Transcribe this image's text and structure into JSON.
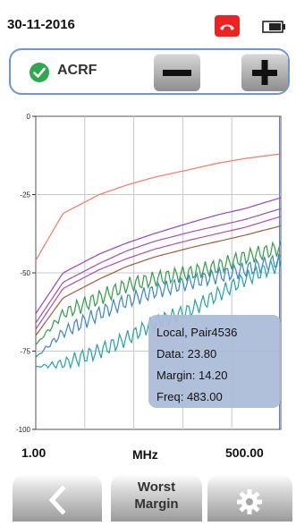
{
  "status": {
    "date": "30-11-2016",
    "phone_icon": "phone-hangup-icon",
    "battery_icon": "battery-icon"
  },
  "measurement": {
    "check_icon": "check-circle-icon",
    "label": "ACRF",
    "minus_icon": "minus-icon",
    "plus_icon": "plus-icon"
  },
  "chart_data": {
    "type": "line",
    "x_scale": "log",
    "xlim": [
      1,
      500
    ],
    "ylim": [
      -100,
      0
    ],
    "xlabel": "MHz",
    "x_tick_labels": [
      "1.00",
      "500.00"
    ],
    "y_tick_labels": [
      "0",
      "-25",
      "-50",
      "-75",
      "-100"
    ],
    "grid": true,
    "series": [
      {
        "color": "#f07a63",
        "points": [
          [
            1,
            -46
          ],
          [
            2,
            -31
          ],
          [
            5,
            -25
          ],
          [
            10,
            -22
          ],
          [
            20,
            -19.5
          ],
          [
            50,
            -17
          ],
          [
            100,
            -15
          ],
          [
            200,
            -13.5
          ],
          [
            500,
            -12
          ]
        ]
      },
      {
        "color": "#8e45c7",
        "points": [
          [
            1,
            -63
          ],
          [
            2,
            -50
          ],
          [
            5,
            -44
          ],
          [
            10,
            -40.5
          ],
          [
            20,
            -37.5
          ],
          [
            50,
            -34
          ],
          [
            100,
            -31.5
          ],
          [
            200,
            -29.5
          ],
          [
            500,
            -26
          ]
        ]
      },
      {
        "color": "#9b4fb8",
        "points": [
          [
            1,
            -66
          ],
          [
            2,
            -53
          ],
          [
            5,
            -47
          ],
          [
            10,
            -43
          ],
          [
            20,
            -40
          ],
          [
            50,
            -37
          ],
          [
            100,
            -35
          ],
          [
            200,
            -33
          ],
          [
            500,
            -29.5
          ]
        ]
      },
      {
        "color": "#b050a0",
        "points": [
          [
            1,
            -68
          ],
          [
            2,
            -55
          ],
          [
            5,
            -49
          ],
          [
            10,
            -45.5
          ],
          [
            20,
            -42.5
          ],
          [
            50,
            -39.5
          ],
          [
            100,
            -37.5
          ],
          [
            200,
            -35.5
          ],
          [
            500,
            -32
          ]
        ]
      },
      {
        "color": "#a05a3a",
        "points": [
          [
            1,
            -70
          ],
          [
            2,
            -58
          ],
          [
            5,
            -52
          ],
          [
            10,
            -48
          ],
          [
            20,
            -45
          ],
          [
            50,
            -42
          ],
          [
            100,
            -40
          ],
          [
            200,
            -38
          ],
          [
            500,
            -35
          ]
        ]
      },
      {
        "color": "#2f9e4a",
        "points": [
          [
            1,
            -73
          ],
          [
            2,
            -63
          ],
          [
            5,
            -58
          ],
          [
            10,
            -54
          ],
          [
            20,
            -52
          ],
          [
            50,
            -50
          ],
          [
            100,
            -48
          ],
          [
            200,
            -45
          ],
          [
            500,
            -42
          ]
        ]
      },
      {
        "color": "#3a86c8",
        "points": [
          [
            1,
            -77
          ],
          [
            2,
            -69
          ],
          [
            5,
            -63
          ],
          [
            10,
            -59
          ],
          [
            20,
            -56
          ],
          [
            50,
            -53
          ],
          [
            100,
            -51
          ],
          [
            200,
            -49
          ],
          [
            500,
            -46
          ]
        ]
      },
      {
        "color": "#23a3a3",
        "points": [
          [
            1,
            -80
          ],
          [
            2,
            -79
          ],
          [
            5,
            -75
          ],
          [
            10,
            -71
          ],
          [
            20,
            -66
          ],
          [
            50,
            -62
          ],
          [
            100,
            -57
          ],
          [
            200,
            -52
          ],
          [
            500,
            -47
          ]
        ]
      }
    ],
    "marker": {
      "freq": 483,
      "tooltip": [
        "Local, Pair4536",
        "Data: 23.80",
        "Margin: 14.20",
        "Freq: 483.00"
      ]
    }
  },
  "footer": {
    "back_icon": "chevron-left-icon",
    "worst_line1": "Worst",
    "worst_line2": "Margin",
    "settings_icon": "gear-icon"
  }
}
